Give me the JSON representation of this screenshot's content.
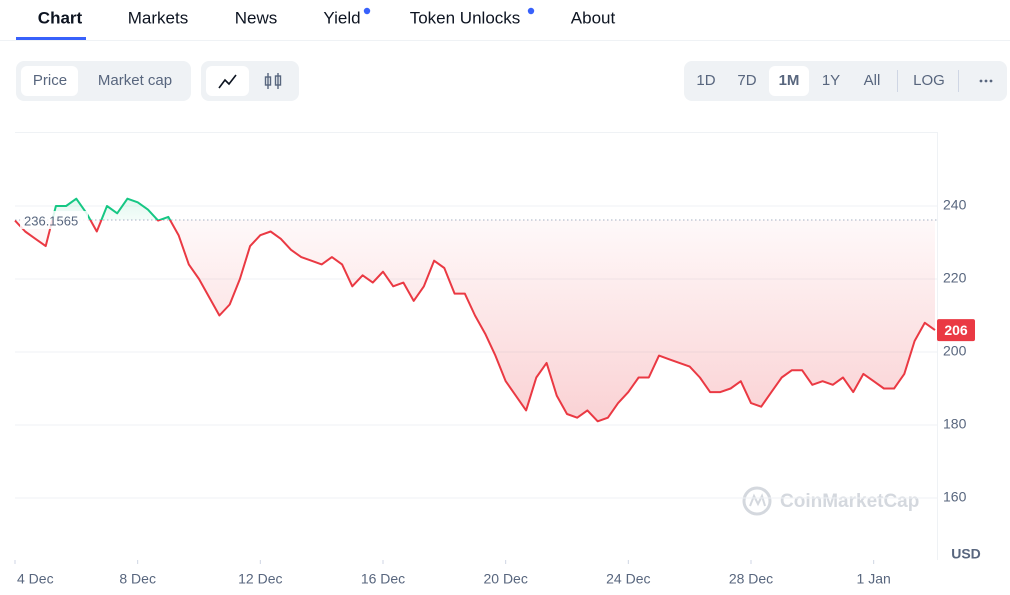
{
  "tabs": [
    "Chart",
    "Markets",
    "News",
    "Yield",
    "Token Unlocks",
    "About"
  ],
  "active_tab": 0,
  "price_toggle": [
    "Price",
    "Market cap"
  ],
  "active_toggle": 0,
  "ranges": [
    "1D",
    "7D",
    "1M",
    "1Y",
    "All",
    "LOG"
  ],
  "active_range": 2,
  "chart_data": {
    "type": "line",
    "values": [
      236,
      233,
      231,
      229,
      240,
      240,
      242,
      238,
      233,
      240,
      238,
      242,
      241,
      239,
      236,
      237,
      232,
      224,
      220,
      215,
      210,
      213,
      220,
      229,
      232,
      233,
      231,
      228,
      226,
      225,
      224,
      226,
      224,
      218,
      221,
      219,
      222,
      218,
      219,
      214,
      218,
      225,
      223,
      216,
      216,
      210,
      205,
      199,
      192,
      188,
      184,
      193,
      197,
      188,
      183,
      182,
      184,
      181,
      182,
      186,
      189,
      193,
      193,
      199,
      198,
      197,
      196,
      193,
      189,
      189,
      190,
      192,
      186,
      185,
      189,
      193,
      195,
      195,
      191,
      192,
      191,
      193,
      189,
      194,
      192,
      190,
      190,
      194,
      203,
      208,
      206
    ],
    "color_up": "#16c784",
    "color_down": "#ea3943",
    "reference": 236.1565,
    "xlim": [
      0,
      90
    ],
    "xticks": [
      {
        "value": 0,
        "label": "4 Dec"
      },
      {
        "value": 12,
        "label": "8 Dec"
      },
      {
        "value": 24,
        "label": "12 Dec"
      },
      {
        "value": 36,
        "label": "16 Dec"
      },
      {
        "value": 48,
        "label": "20 Dec"
      },
      {
        "value": 60,
        "label": "24 Dec"
      },
      {
        "value": 72,
        "label": "28 Dec"
      },
      {
        "value": 84,
        "label": "1 Jan"
      }
    ],
    "ylim": [
      143,
      260
    ],
    "yticks": [
      160,
      180,
      200,
      220,
      240
    ],
    "grid": true,
    "unit": "USD",
    "watermark": "CoinMarketCap"
  }
}
